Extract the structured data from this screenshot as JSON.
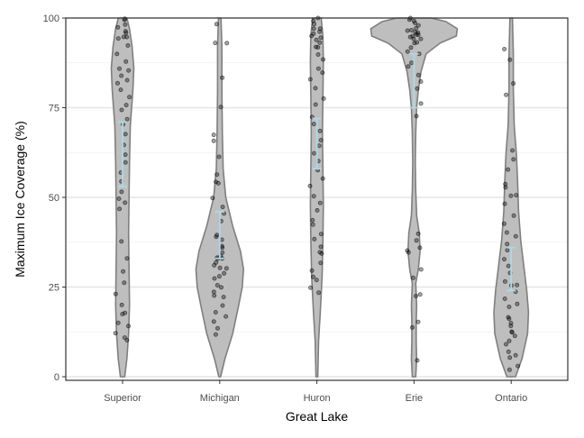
{
  "chart_data": {
    "type": "violin",
    "xlabel": "Great Lake",
    "ylabel": "Maximum Ice Coverage (%)",
    "ylim": [
      0,
      100
    ],
    "yticks": [
      0,
      25,
      50,
      75,
      100
    ],
    "grid": true,
    "categories": [
      "Superior",
      "Michigan",
      "Huron",
      "Erie",
      "Ontario"
    ],
    "violin_fill": "#bebebe",
    "violin_outline": "#7f7f7f",
    "errorbar_color": "#add8e6",
    "point_color": "#000000",
    "violins": [
      {
        "category": "Superior",
        "density": [
          [
            0,
            0.05
          ],
          [
            5,
            0.1
          ],
          [
            12,
            0.14
          ],
          [
            20,
            0.16
          ],
          [
            30,
            0.15
          ],
          [
            40,
            0.14
          ],
          [
            50,
            0.15
          ],
          [
            60,
            0.16
          ],
          [
            70,
            0.18
          ],
          [
            80,
            0.24
          ],
          [
            86,
            0.26
          ],
          [
            92,
            0.22
          ],
          [
            97,
            0.16
          ],
          [
            100,
            0.1
          ]
        ],
        "mean_ci": {
          "low": 53,
          "mean": 62,
          "high": 71
        }
      },
      {
        "category": "Michigan",
        "density": [
          [
            0,
            0.02
          ],
          [
            5,
            0.12
          ],
          [
            12,
            0.3
          ],
          [
            20,
            0.44
          ],
          [
            25,
            0.52
          ],
          [
            30,
            0.55
          ],
          [
            35,
            0.48
          ],
          [
            42,
            0.3
          ],
          [
            50,
            0.14
          ],
          [
            58,
            0.08
          ],
          [
            68,
            0.06
          ],
          [
            80,
            0.05
          ],
          [
            92,
            0.05
          ],
          [
            100,
            0.03
          ]
        ],
        "mean_ci": {
          "low": 33,
          "mean": 39,
          "high": 46
        }
      },
      {
        "category": "Huron",
        "density": [
          [
            0,
            0.02
          ],
          [
            10,
            0.04
          ],
          [
            18,
            0.08
          ],
          [
            28,
            0.12
          ],
          [
            38,
            0.14
          ],
          [
            48,
            0.15
          ],
          [
            58,
            0.14
          ],
          [
            68,
            0.13
          ],
          [
            78,
            0.14
          ],
          [
            88,
            0.15
          ],
          [
            95,
            0.14
          ],
          [
            100,
            0.1
          ]
        ],
        "mean_ci": {
          "low": 58,
          "mean": 65,
          "high": 72
        }
      },
      {
        "category": "Erie",
        "density": [
          [
            0,
            0.04
          ],
          [
            5,
            0.06
          ],
          [
            10,
            0.05
          ],
          [
            15,
            0.05
          ],
          [
            20,
            0.06
          ],
          [
            26,
            0.04
          ],
          [
            30,
            0.1
          ],
          [
            35,
            0.14
          ],
          [
            40,
            0.12
          ],
          [
            45,
            0.06
          ],
          [
            52,
            0.04
          ],
          [
            60,
            0.03
          ],
          [
            68,
            0.04
          ],
          [
            75,
            0.06
          ],
          [
            80,
            0.1
          ],
          [
            85,
            0.16
          ],
          [
            90,
            0.28
          ],
          [
            93,
            0.6
          ],
          [
            95,
            0.98
          ],
          [
            97,
            1.0
          ],
          [
            99,
            0.74
          ],
          [
            100,
            0.4
          ]
        ],
        "mean_ci": {
          "low": 75,
          "mean": 83,
          "high": 90
        }
      },
      {
        "category": "Ontario",
        "density": [
          [
            0,
            0.1
          ],
          [
            5,
            0.25
          ],
          [
            12,
            0.38
          ],
          [
            18,
            0.4
          ],
          [
            24,
            0.36
          ],
          [
            30,
            0.3
          ],
          [
            38,
            0.22
          ],
          [
            46,
            0.17
          ],
          [
            54,
            0.15
          ],
          [
            62,
            0.12
          ],
          [
            70,
            0.07
          ],
          [
            80,
            0.05
          ],
          [
            90,
            0.05
          ],
          [
            100,
            0.03
          ]
        ],
        "mean_ci": {
          "low": 24,
          "mean": 30,
          "high": 36
        }
      }
    ],
    "points": [
      {
        "category": "Superior",
        "values": [
          100,
          99,
          98,
          97,
          96,
          96,
          95,
          95,
          94,
          92,
          90,
          88,
          86,
          85,
          84,
          83,
          82,
          80,
          78,
          76,
          74,
          72,
          70,
          68,
          65,
          62,
          60,
          57,
          54,
          52,
          50,
          49,
          47,
          38,
          33,
          29,
          26,
          23,
          20,
          18,
          17,
          15,
          14,
          12,
          11,
          10
        ]
      },
      {
        "category": "Michigan",
        "values": [
          98,
          93,
          93,
          83,
          75,
          67,
          66,
          61,
          56,
          54,
          54,
          50,
          47,
          45,
          43,
          40,
          39,
          38,
          36,
          36,
          35,
          34,
          33,
          33,
          33,
          32,
          31,
          30,
          30,
          29,
          28,
          27,
          26,
          25,
          24,
          23,
          22,
          20,
          18,
          17,
          15,
          13,
          12
        ]
      },
      {
        "category": "Huron",
        "values": [
          100,
          99,
          98,
          97,
          97,
          96,
          96,
          95,
          95,
          94,
          93,
          92,
          92,
          90,
          88,
          86,
          85,
          83,
          80,
          78,
          76,
          72,
          70,
          68,
          66,
          64,
          62,
          60,
          58,
          55,
          53,
          50,
          48,
          46,
          44,
          42,
          40,
          38,
          36,
          35,
          34,
          32,
          30,
          28,
          27,
          25,
          23
        ]
      },
      {
        "category": "Erie",
        "values": [
          100,
          100,
          99,
          99,
          98,
          97,
          97,
          96,
          96,
          96,
          95,
          95,
          95,
          95,
          94,
          94,
          93,
          93,
          92,
          91,
          90,
          88,
          86,
          84,
          82,
          80,
          76,
          73,
          40,
          38,
          36,
          35,
          35,
          30,
          28,
          23,
          22,
          15,
          14,
          5
        ]
      },
      {
        "category": "Ontario",
        "values": [
          91,
          88,
          82,
          79,
          63,
          61,
          58,
          54,
          53,
          51,
          50,
          48,
          45,
          43,
          40,
          39,
          37,
          35,
          33,
          31,
          29,
          27,
          26,
          25,
          24,
          22,
          20,
          19,
          17,
          16,
          15,
          14,
          13,
          12,
          11,
          10,
          9,
          7,
          6,
          5,
          3,
          2
        ]
      }
    ]
  }
}
